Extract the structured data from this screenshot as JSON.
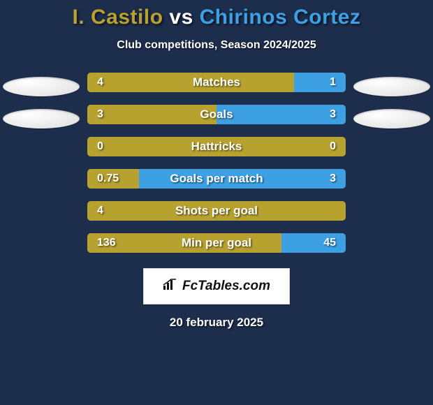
{
  "colors": {
    "background": "#1d2d4c",
    "title_p1": "#b7a12f",
    "title_vs": "#ffffff",
    "title_p2": "#3da0e3",
    "subtitle": "#ffffff",
    "bar_left": "#b7a12f",
    "bar_right": "#3da0e3",
    "bar_label": "#ffffff",
    "date": "#ffffff"
  },
  "title": {
    "player1": "I. Castilo",
    "vs": "vs",
    "player2": "Chirinos Cortez",
    "fontsize": 30
  },
  "subtitle": "Club competitions, Season 2024/2025",
  "bars": {
    "height": 28,
    "gap": 18,
    "border_radius": 5,
    "items": [
      {
        "label": "Matches",
        "left_value": "4",
        "right_value": "1",
        "left_pct": 80,
        "right_pct": 20
      },
      {
        "label": "Goals",
        "left_value": "3",
        "right_value": "3",
        "left_pct": 50,
        "right_pct": 50
      },
      {
        "label": "Hattricks",
        "left_value": "0",
        "right_value": "0",
        "left_pct": 100,
        "right_pct": 0
      },
      {
        "label": "Goals per match",
        "left_value": "0.75",
        "right_value": "3",
        "left_pct": 20,
        "right_pct": 80
      },
      {
        "label": "Shots per goal",
        "left_value": "4",
        "right_value": "",
        "left_pct": 100,
        "right_pct": 0
      },
      {
        "label": "Min per goal",
        "left_value": "136",
        "right_value": "45",
        "left_pct": 75,
        "right_pct": 25
      }
    ]
  },
  "logo": {
    "text": "FcTables.com"
  },
  "date": "20 february 2025"
}
